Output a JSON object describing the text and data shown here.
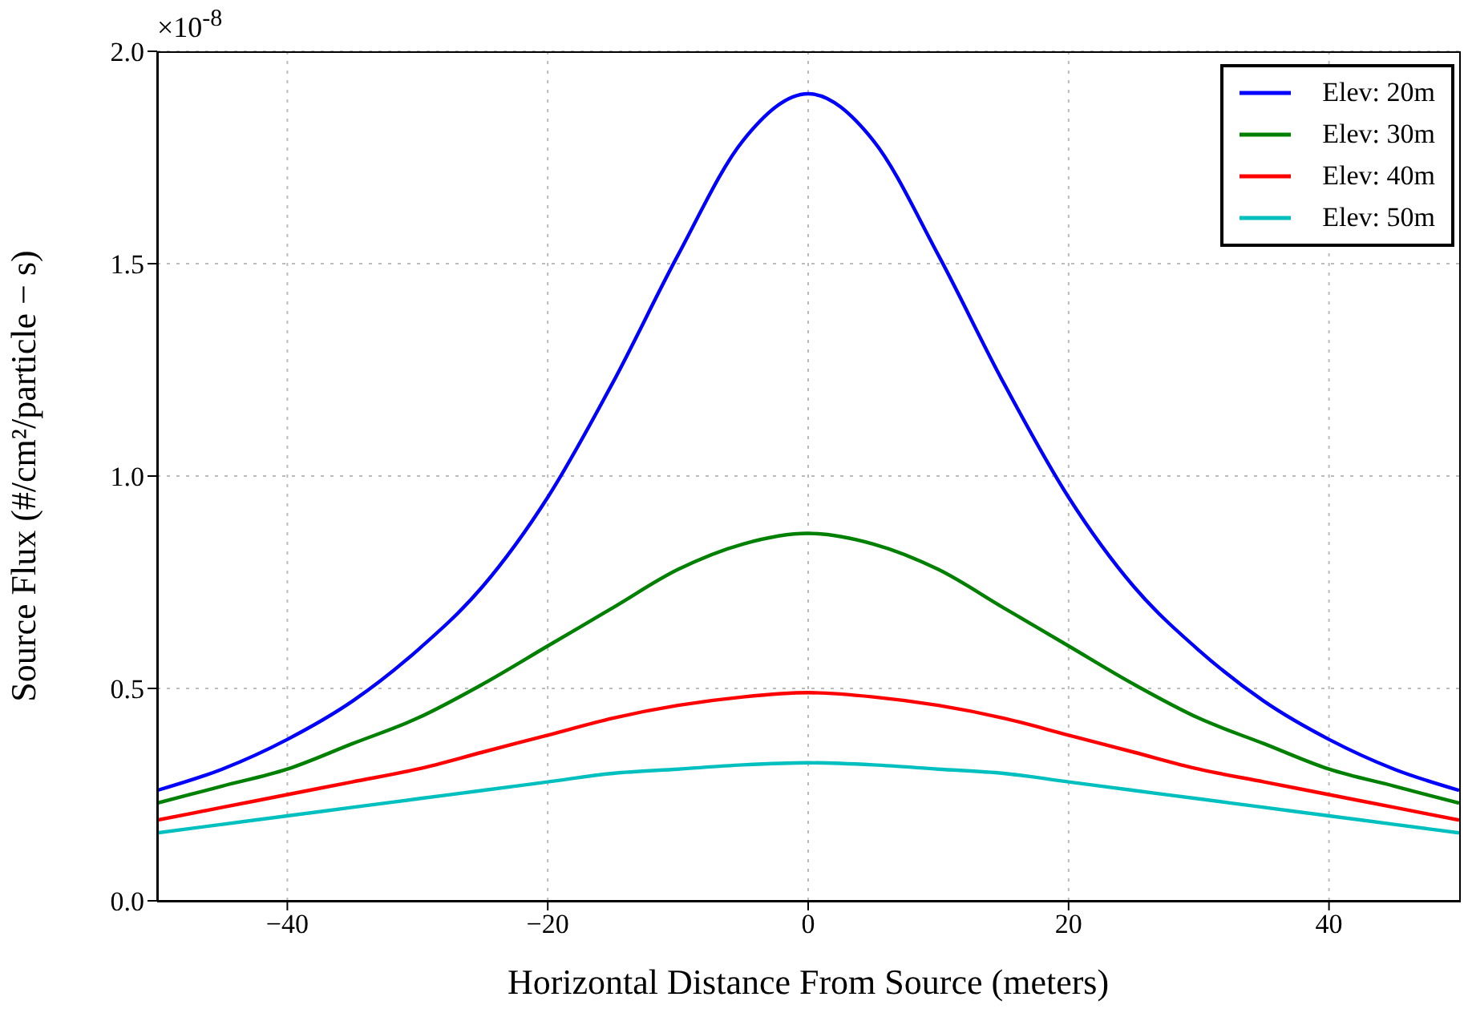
{
  "chart_data": {
    "type": "line",
    "xlabel": "Horizontal Distance From Source (meters)",
    "ylabel": "Source Flux (#/cm²/particle − s)",
    "annotations": [
      "×10$^{-8}$"
    ],
    "x": [
      -50,
      -45,
      -40,
      -35,
      -30,
      -25,
      -20,
      -15,
      -10,
      -5,
      0,
      5,
      10,
      15,
      20,
      25,
      30,
      35,
      40,
      45,
      50
    ],
    "series": [
      {
        "name": "Elev: 20m",
        "color": "#0000ff",
        "values": [
          0.26,
          0.31,
          0.38,
          0.47,
          0.59,
          0.74,
          0.95,
          1.22,
          1.52,
          1.79,
          1.9,
          1.79,
          1.52,
          1.22,
          0.95,
          0.74,
          0.59,
          0.47,
          0.38,
          0.31,
          0.26
        ]
      },
      {
        "name": "Elev: 30m",
        "color": "#008000",
        "values": [
          0.23,
          0.27,
          0.31,
          0.37,
          0.43,
          0.51,
          0.6,
          0.69,
          0.78,
          0.84,
          0.865,
          0.84,
          0.78,
          0.69,
          0.6,
          0.51,
          0.43,
          0.37,
          0.31,
          0.27,
          0.23
        ]
      },
      {
        "name": "Elev: 40m",
        "color": "#ff0000",
        "values": [
          0.19,
          0.22,
          0.25,
          0.28,
          0.31,
          0.35,
          0.39,
          0.43,
          0.46,
          0.48,
          0.49,
          0.48,
          0.46,
          0.43,
          0.39,
          0.35,
          0.31,
          0.28,
          0.25,
          0.22,
          0.19
        ]
      },
      {
        "name": "Elev: 50m",
        "color": "#00bfbf",
        "values": [
          0.16,
          0.18,
          0.2,
          0.22,
          0.24,
          0.26,
          0.28,
          0.3,
          0.31,
          0.32,
          0.325,
          0.32,
          0.31,
          0.3,
          0.28,
          0.26,
          0.24,
          0.22,
          0.2,
          0.18,
          0.16
        ]
      }
    ],
    "xlim": [
      -50,
      50
    ],
    "xticks": [
      {
        "value": -40,
        "label": "−40"
      },
      {
        "value": -20,
        "label": "−20"
      },
      0,
      20,
      40
    ],
    "ylim": [
      0,
      2
    ],
    "yticks": [
      {
        "value": 0,
        "label": "0.0"
      },
      0.5,
      {
        "value": 1,
        "label": "1.0"
      },
      1.5,
      {
        "value": 2,
        "label": "2.0"
      }
    ],
    "grid": true,
    "legend": "top right",
    "marker": "none",
    "line_style": "solid"
  }
}
